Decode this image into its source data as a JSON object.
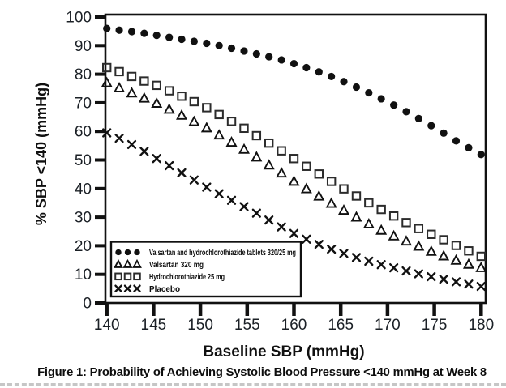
{
  "figure": {
    "caption": "Figure 1: Probability of Achieving Systolic Blood Pressure <140 mmHg at Week 8"
  },
  "chart_data": {
    "type": "scatter",
    "title": "",
    "xlabel": "Baseline SBP (mmHg)",
    "ylabel": "% SBP <140 (mmHg)",
    "xlim": [
      140,
      180
    ],
    "ylim": [
      0,
      100
    ],
    "x_ticks": [
      140,
      145,
      150,
      155,
      160,
      165,
      170,
      175,
      180
    ],
    "y_ticks": [
      0,
      10,
      20,
      30,
      40,
      50,
      60,
      70,
      80,
      90,
      100
    ],
    "grid": false,
    "legend_position": "inside-bottom-left",
    "marker_color": "#111111",
    "axis_color": "#111111",
    "tick_label_color": "#1b2026",
    "x": [
      140,
      141.33,
      142.67,
      144,
      145.33,
      146.67,
      148,
      149.33,
      150.67,
      152,
      153.33,
      154.67,
      156,
      157.33,
      158.67,
      160,
      161.33,
      162.67,
      164,
      165.33,
      166.67,
      168,
      169.33,
      170.67,
      172,
      173.33,
      174.67,
      176,
      177.33,
      178.67,
      180
    ],
    "series": [
      {
        "name": "Valsartan and hydrochlorothiazide tablets 320/25 mg",
        "marker": "filled-circle",
        "y": [
          96.0,
          95.4,
          94.9,
          94.3,
          93.6,
          92.9,
          92.2,
          91.5,
          90.8,
          90.0,
          89.1,
          88.1,
          87.1,
          86.1,
          85.0,
          83.7,
          82.3,
          80.8,
          79.2,
          77.4,
          75.5,
          73.5,
          71.4,
          69.2,
          66.9,
          64.5,
          62.0,
          59.4,
          56.7,
          54.3,
          51.9
        ]
      },
      {
        "name": "Valsartan 320 mg",
        "marker": "open-triangle",
        "y": [
          77.0,
          75.2,
          73.4,
          71.6,
          69.8,
          67.7,
          65.6,
          63.4,
          61.2,
          58.7,
          56.2,
          53.7,
          51.0,
          48.2,
          45.4,
          42.5,
          39.9,
          37.3,
          34.8,
          32.4,
          30.0,
          27.6,
          25.4,
          23.4,
          21.6,
          19.8,
          18.0,
          16.4,
          14.9,
          13.5,
          12.3
        ]
      },
      {
        "name": "Hydrochlorothiazide 25 mg",
        "marker": "open-square",
        "y": [
          82.3,
          80.9,
          79.2,
          77.6,
          76.1,
          74.2,
          72.3,
          70.4,
          68.3,
          65.9,
          63.5,
          61.1,
          58.5,
          55.9,
          53.2,
          50.5,
          47.8,
          45.1,
          42.5,
          39.9,
          37.4,
          35.0,
          32.7,
          30.4,
          28.1,
          26.0,
          24.0,
          22.1,
          20.1,
          18.2,
          16.3
        ]
      },
      {
        "name": "Placebo",
        "marker": "x-cross",
        "y": [
          59.5,
          57.6,
          55.4,
          53.0,
          50.5,
          48.0,
          45.5,
          43.0,
          40.5,
          38.2,
          35.9,
          33.7,
          31.4,
          29.0,
          26.6,
          24.3,
          22.3,
          20.5,
          18.8,
          17.3,
          15.9,
          14.6,
          13.4,
          12.3,
          11.2,
          10.2,
          9.2,
          8.3,
          7.4,
          6.6,
          5.8
        ]
      }
    ]
  }
}
